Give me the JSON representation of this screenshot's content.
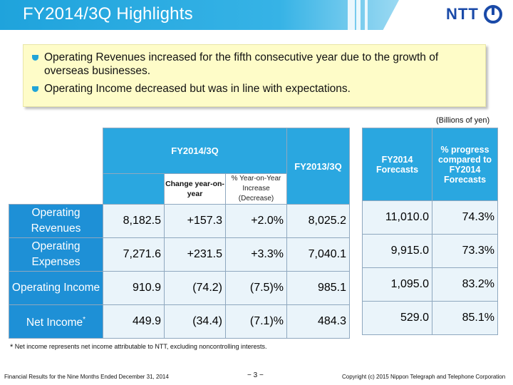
{
  "header": {
    "title": "FY2014/3Q Highlights",
    "logo_text": "NTT",
    "accent_color": "#1fa3dc"
  },
  "highlights": [
    "Operating Revenues increased for the fifth consecutive year due to the growth of overseas businesses.",
    "Operating Income decreased but was in line with expectations."
  ],
  "units": "(Billions of yen)",
  "table": {
    "group_header": "FY2014/3Q",
    "sub_headers": {
      "change": "Change year-on-year",
      "pct": "% Year-on-Year Increase (Decrease)"
    },
    "prior_header": "FY2013/3Q",
    "forecast_header": "FY2014 Forecasts",
    "progress_header": "% progress compared to FY2014 Forecasts",
    "rows": [
      {
        "label": "Operating Revenues",
        "value": "8,182.5",
        "change": "+157.3",
        "pct": "+2.0%",
        "prior": "8,025.2",
        "forecast": "11,010.0",
        "progress": "74.3%"
      },
      {
        "label": "Operating Expenses",
        "value": "7,271.6",
        "change": "+231.5",
        "pct": "+3.3%",
        "prior": "7,040.1",
        "forecast": "9,915.0",
        "progress": "73.3%"
      },
      {
        "label": "Operating Income",
        "value": "910.9",
        "change": "(74.2)",
        "pct": "(7.5)%",
        "prior": "985.1",
        "forecast": "1,095.0",
        "progress": "83.2%"
      },
      {
        "label": "Net Income",
        "label_mark": "*",
        "value": "449.9",
        "change": "(34.4)",
        "pct": "(7.1)%",
        "prior": "484.3",
        "forecast": "529.0",
        "progress": "85.1%"
      }
    ]
  },
  "footnote": {
    "mark": "*",
    "text": "Net income represents net income attributable to NTT, excluding noncontrolling interests."
  },
  "footer": {
    "left": "Financial Results for the Nine Months Ended December 31, 2014",
    "page": "− 3 −",
    "right": "Copyright (c) 2015 Nippon Telegraph and Telephone Corporation"
  }
}
